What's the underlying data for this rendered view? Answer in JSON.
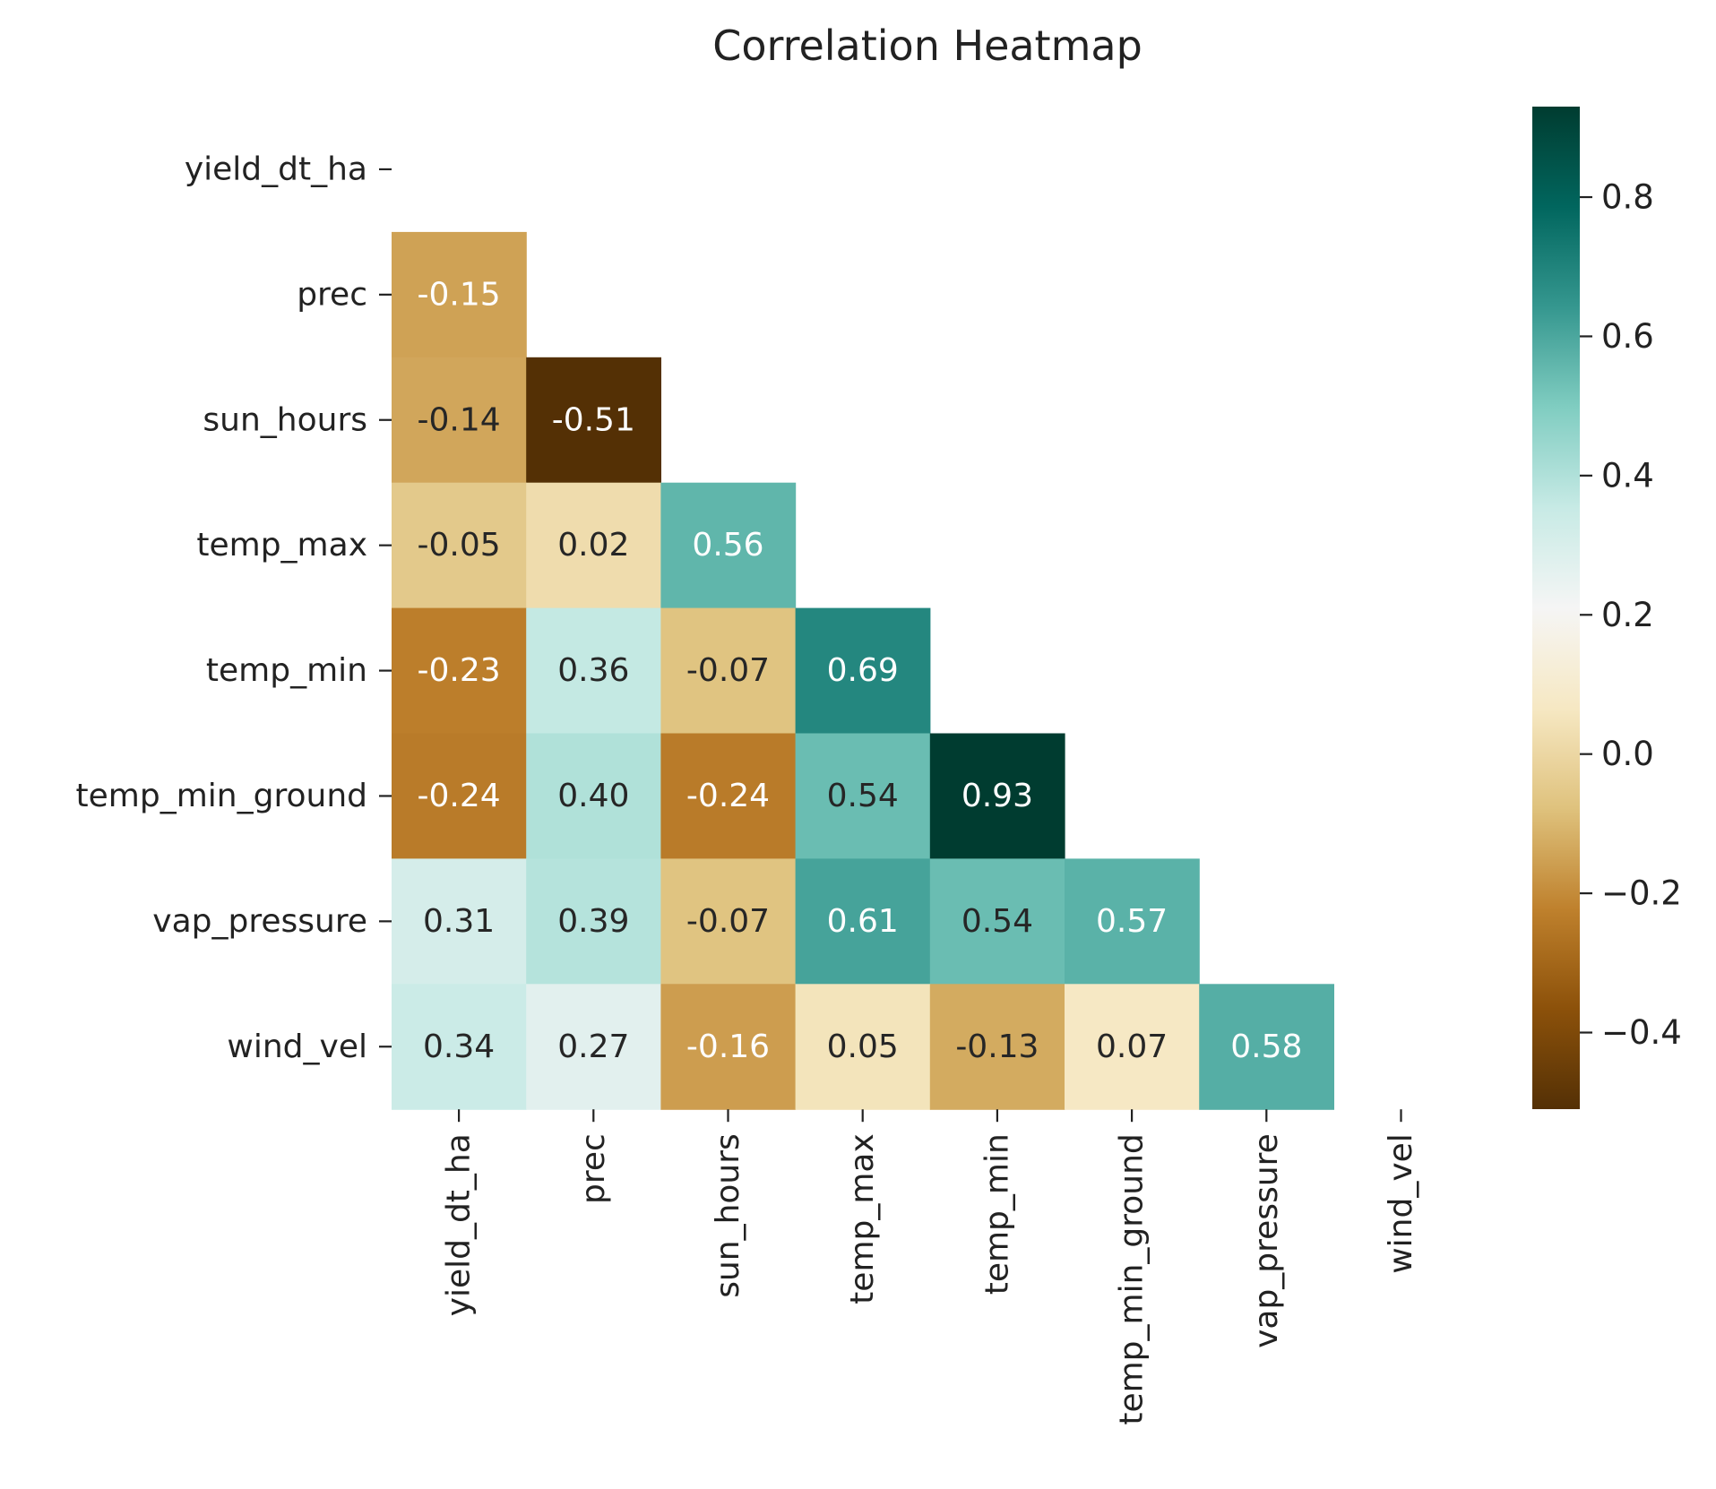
{
  "chart_data": {
    "type": "heatmap",
    "title": "Correlation Heatmap",
    "variables": [
      "yield_dt_ha",
      "prec",
      "sun_hours",
      "temp_max",
      "temp_min",
      "temp_min_ground",
      "vap_pressure",
      "wind_vel"
    ],
    "mask": "upper-triangle-including-diagonal",
    "matrix": [
      [
        null,
        null,
        null,
        null,
        null,
        null,
        null,
        null
      ],
      [
        -0.15,
        null,
        null,
        null,
        null,
        null,
        null,
        null
      ],
      [
        -0.14,
        -0.51,
        null,
        null,
        null,
        null,
        null,
        null
      ],
      [
        -0.05,
        0.02,
        0.56,
        null,
        null,
        null,
        null,
        null
      ],
      [
        -0.23,
        0.36,
        -0.07,
        0.69,
        null,
        null,
        null,
        null
      ],
      [
        -0.24,
        0.4,
        -0.24,
        0.54,
        0.93,
        null,
        null,
        null
      ],
      [
        0.31,
        0.39,
        -0.07,
        0.61,
        0.54,
        0.57,
        null,
        null
      ],
      [
        0.34,
        0.27,
        -0.16,
        0.05,
        -0.13,
        0.07,
        0.58,
        null
      ]
    ],
    "labels": [
      [
        null,
        null,
        null,
        null,
        null,
        null,
        null,
        null
      ],
      [
        "-0.15",
        null,
        null,
        null,
        null,
        null,
        null,
        null
      ],
      [
        "-0.14",
        "-0.51",
        null,
        null,
        null,
        null,
        null,
        null
      ],
      [
        "-0.05",
        "0.02",
        "0.56",
        null,
        null,
        null,
        null,
        null
      ],
      [
        "-0.23",
        "0.36",
        "-0.07",
        "0.69",
        null,
        null,
        null,
        null
      ],
      [
        "-0.24",
        "0.40",
        "-0.24",
        "0.54",
        "0.93",
        null,
        null,
        null
      ],
      [
        "0.31",
        "0.39",
        "-0.07",
        "0.61",
        "0.54",
        "0.57",
        null,
        null
      ],
      [
        "0.34",
        "0.27",
        "-0.16",
        "0.05",
        "-0.13",
        "0.07",
        "0.58",
        null
      ]
    ],
    "colormap": "BrBG",
    "vmin": -0.51,
    "vmax": 0.93,
    "colorbar": {
      "ticks": [
        0.8,
        0.6,
        0.4,
        0.2,
        0.0,
        -0.2,
        -0.4
      ],
      "tick_labels": [
        "0.8",
        "0.6",
        "0.4",
        "0.2",
        "0.0",
        "−0.2",
        "−0.4"
      ]
    }
  }
}
